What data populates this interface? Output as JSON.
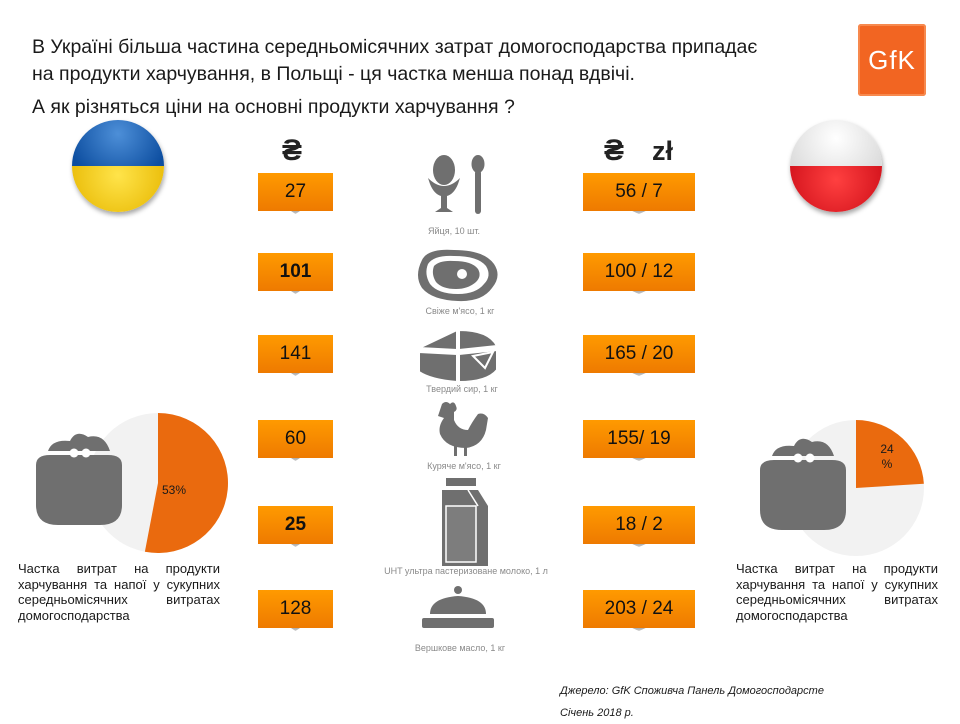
{
  "headline": {
    "line1": "В Україні більша частина середньомісячних затрат домогосподарства припадає",
    "line2": "на продукти харчування, в Польщі - ця частка менша понад вдвічі.",
    "question": "А як різняться ціни на основні продукти харчування ?"
  },
  "logo": {
    "text": "GfK",
    "color": "#f26522"
  },
  "currency": {
    "ua": "₴",
    "pl_uah": "₴",
    "pl_pln": "zł"
  },
  "products": [
    {
      "label": "Яйця, 10 шт.",
      "icon": "egg-cup-spoon-icon",
      "ua_price": "27",
      "pl_price": "56 / 7"
    },
    {
      "label": "Свіже м'ясо, 1 кг",
      "icon": "steak-icon",
      "ua_price": "101",
      "pl_price": "100 / 12"
    },
    {
      "label": "Твердий сир, 1 кг",
      "icon": "cheese-wheel-icon",
      "ua_price": "141",
      "pl_price": "165 / 20"
    },
    {
      "label": "Куряче м'ясо, 1 кг",
      "icon": "chicken-icon",
      "ua_price": "60",
      "pl_price": "155/ 19"
    },
    {
      "label": "UHT  ультра пастеризоване молоко, 1 л",
      "icon": "milk-carton-icon",
      "ua_price": "25",
      "pl_price": "18 / 2"
    },
    {
      "label": "Вершкове масло, 1 кг",
      "icon": "butter-dish-icon",
      "ua_price": "128",
      "pl_price": "203 / 24"
    }
  ],
  "share": {
    "ua_value": "53%",
    "pl_value_line1": "24",
    "pl_value_line2": "%",
    "ua_fraction": 0.53,
    "pl_fraction": 0.24,
    "description": "Частка витрат на продукти харчування та напої у сукупних середньомісячних витратах домогосподарства"
  },
  "source": {
    "line1": "Джерело: GfK  Споживча Панель Домогосподарсте",
    "line2": "Січень 2018 р."
  },
  "colors": {
    "accent": "#ee7a00",
    "pie": "#ea6a0e",
    "icon": "#6f6f6f"
  }
}
